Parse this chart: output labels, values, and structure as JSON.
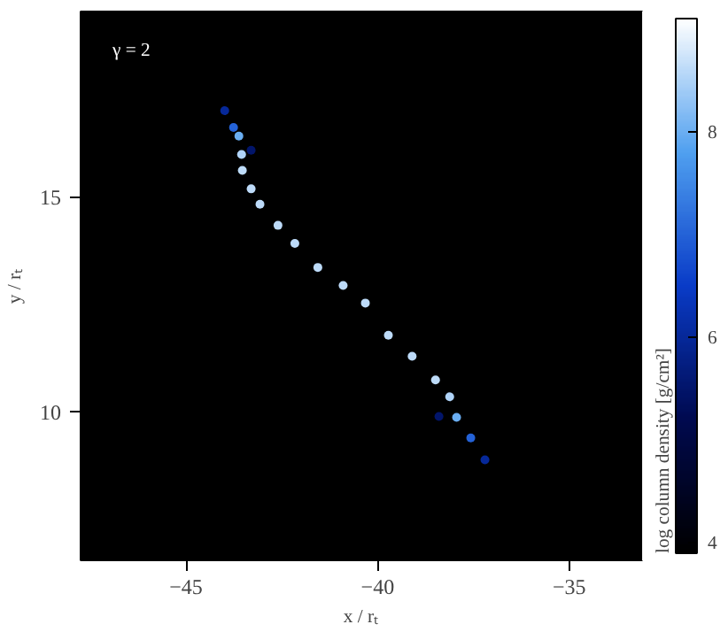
{
  "chart_data": {
    "type": "scatter",
    "xlabel": "x / rₜ",
    "ylabel": "y / rₜ",
    "clabel": "log column density [g/cm²]",
    "annotations": [
      "γ = 2"
    ],
    "x": [
      -43.99,
      -43.76,
      -43.62,
      -43.55,
      -43.53,
      -43.3,
      -43.07,
      -42.6,
      -42.16,
      -41.56,
      -40.9,
      -40.32,
      -39.72,
      -39.1,
      -38.49,
      -38.12,
      -37.94,
      -37.57,
      -37.2,
      -43.3,
      -38.4
    ],
    "values": [
      17.02,
      16.63,
      16.43,
      16.0,
      15.63,
      15.2,
      14.84,
      14.35,
      13.93,
      13.37,
      12.95,
      12.54,
      11.79,
      11.3,
      10.75,
      10.36,
      9.88,
      9.4,
      8.89,
      16.1,
      9.9
    ],
    "cvalues": [
      6.0,
      7.0,
      8.0,
      8.5,
      8.6,
      8.6,
      8.6,
      8.6,
      8.6,
      8.6,
      8.6,
      8.6,
      8.6,
      8.6,
      8.6,
      8.5,
      8.0,
      7.0,
      6.0,
      5.5,
      5.5
    ],
    "xlim": [
      -47.75,
      -33.1
    ],
    "ylim": [
      6.55,
      19.33
    ],
    "xticks": [
      -45,
      -40,
      -35
    ],
    "yticks": [
      10,
      15
    ],
    "clim": [
      3.9,
      9.1
    ],
    "cticks": [
      4,
      6,
      8
    ],
    "grid": false,
    "marker": "circle"
  }
}
